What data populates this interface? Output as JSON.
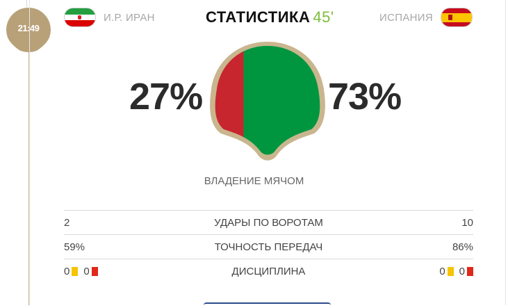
{
  "match_time": "21:49",
  "header": {
    "title": "СТАТИСТИКА",
    "minute": "45'",
    "home_team": "И.Р. ИРАН",
    "away_team": "ИСПАНИЯ",
    "home_flag_icon": "iran-flag-icon",
    "away_flag_icon": "spain-flag-icon"
  },
  "possession": {
    "label": "ВЛАДЕНИЕ МЯЧОМ",
    "home_text": "27%",
    "away_text": "73%",
    "home_value": 27,
    "away_value": 73,
    "home_color": "#c8262e",
    "away_color": "#009640",
    "border_color": "#c9b68e"
  },
  "stats": [
    {
      "name": "УДАРЫ ПО ВОРОТАМ",
      "home": "2",
      "away": "10"
    },
    {
      "name": "ТОЧНОСТЬ ПЕРЕДАЧ",
      "home": "59%",
      "away": "86%"
    }
  ],
  "discipline": {
    "name": "ДИСЦИПЛИНА",
    "home_yellow": "0",
    "home_red": "0",
    "away_yellow": "0",
    "away_red": "0"
  },
  "colors": {
    "accent_minute": "#7bbf3a",
    "badge": "#b8a178",
    "yellow_card": "#f6c400",
    "red_card": "#e0271a"
  }
}
